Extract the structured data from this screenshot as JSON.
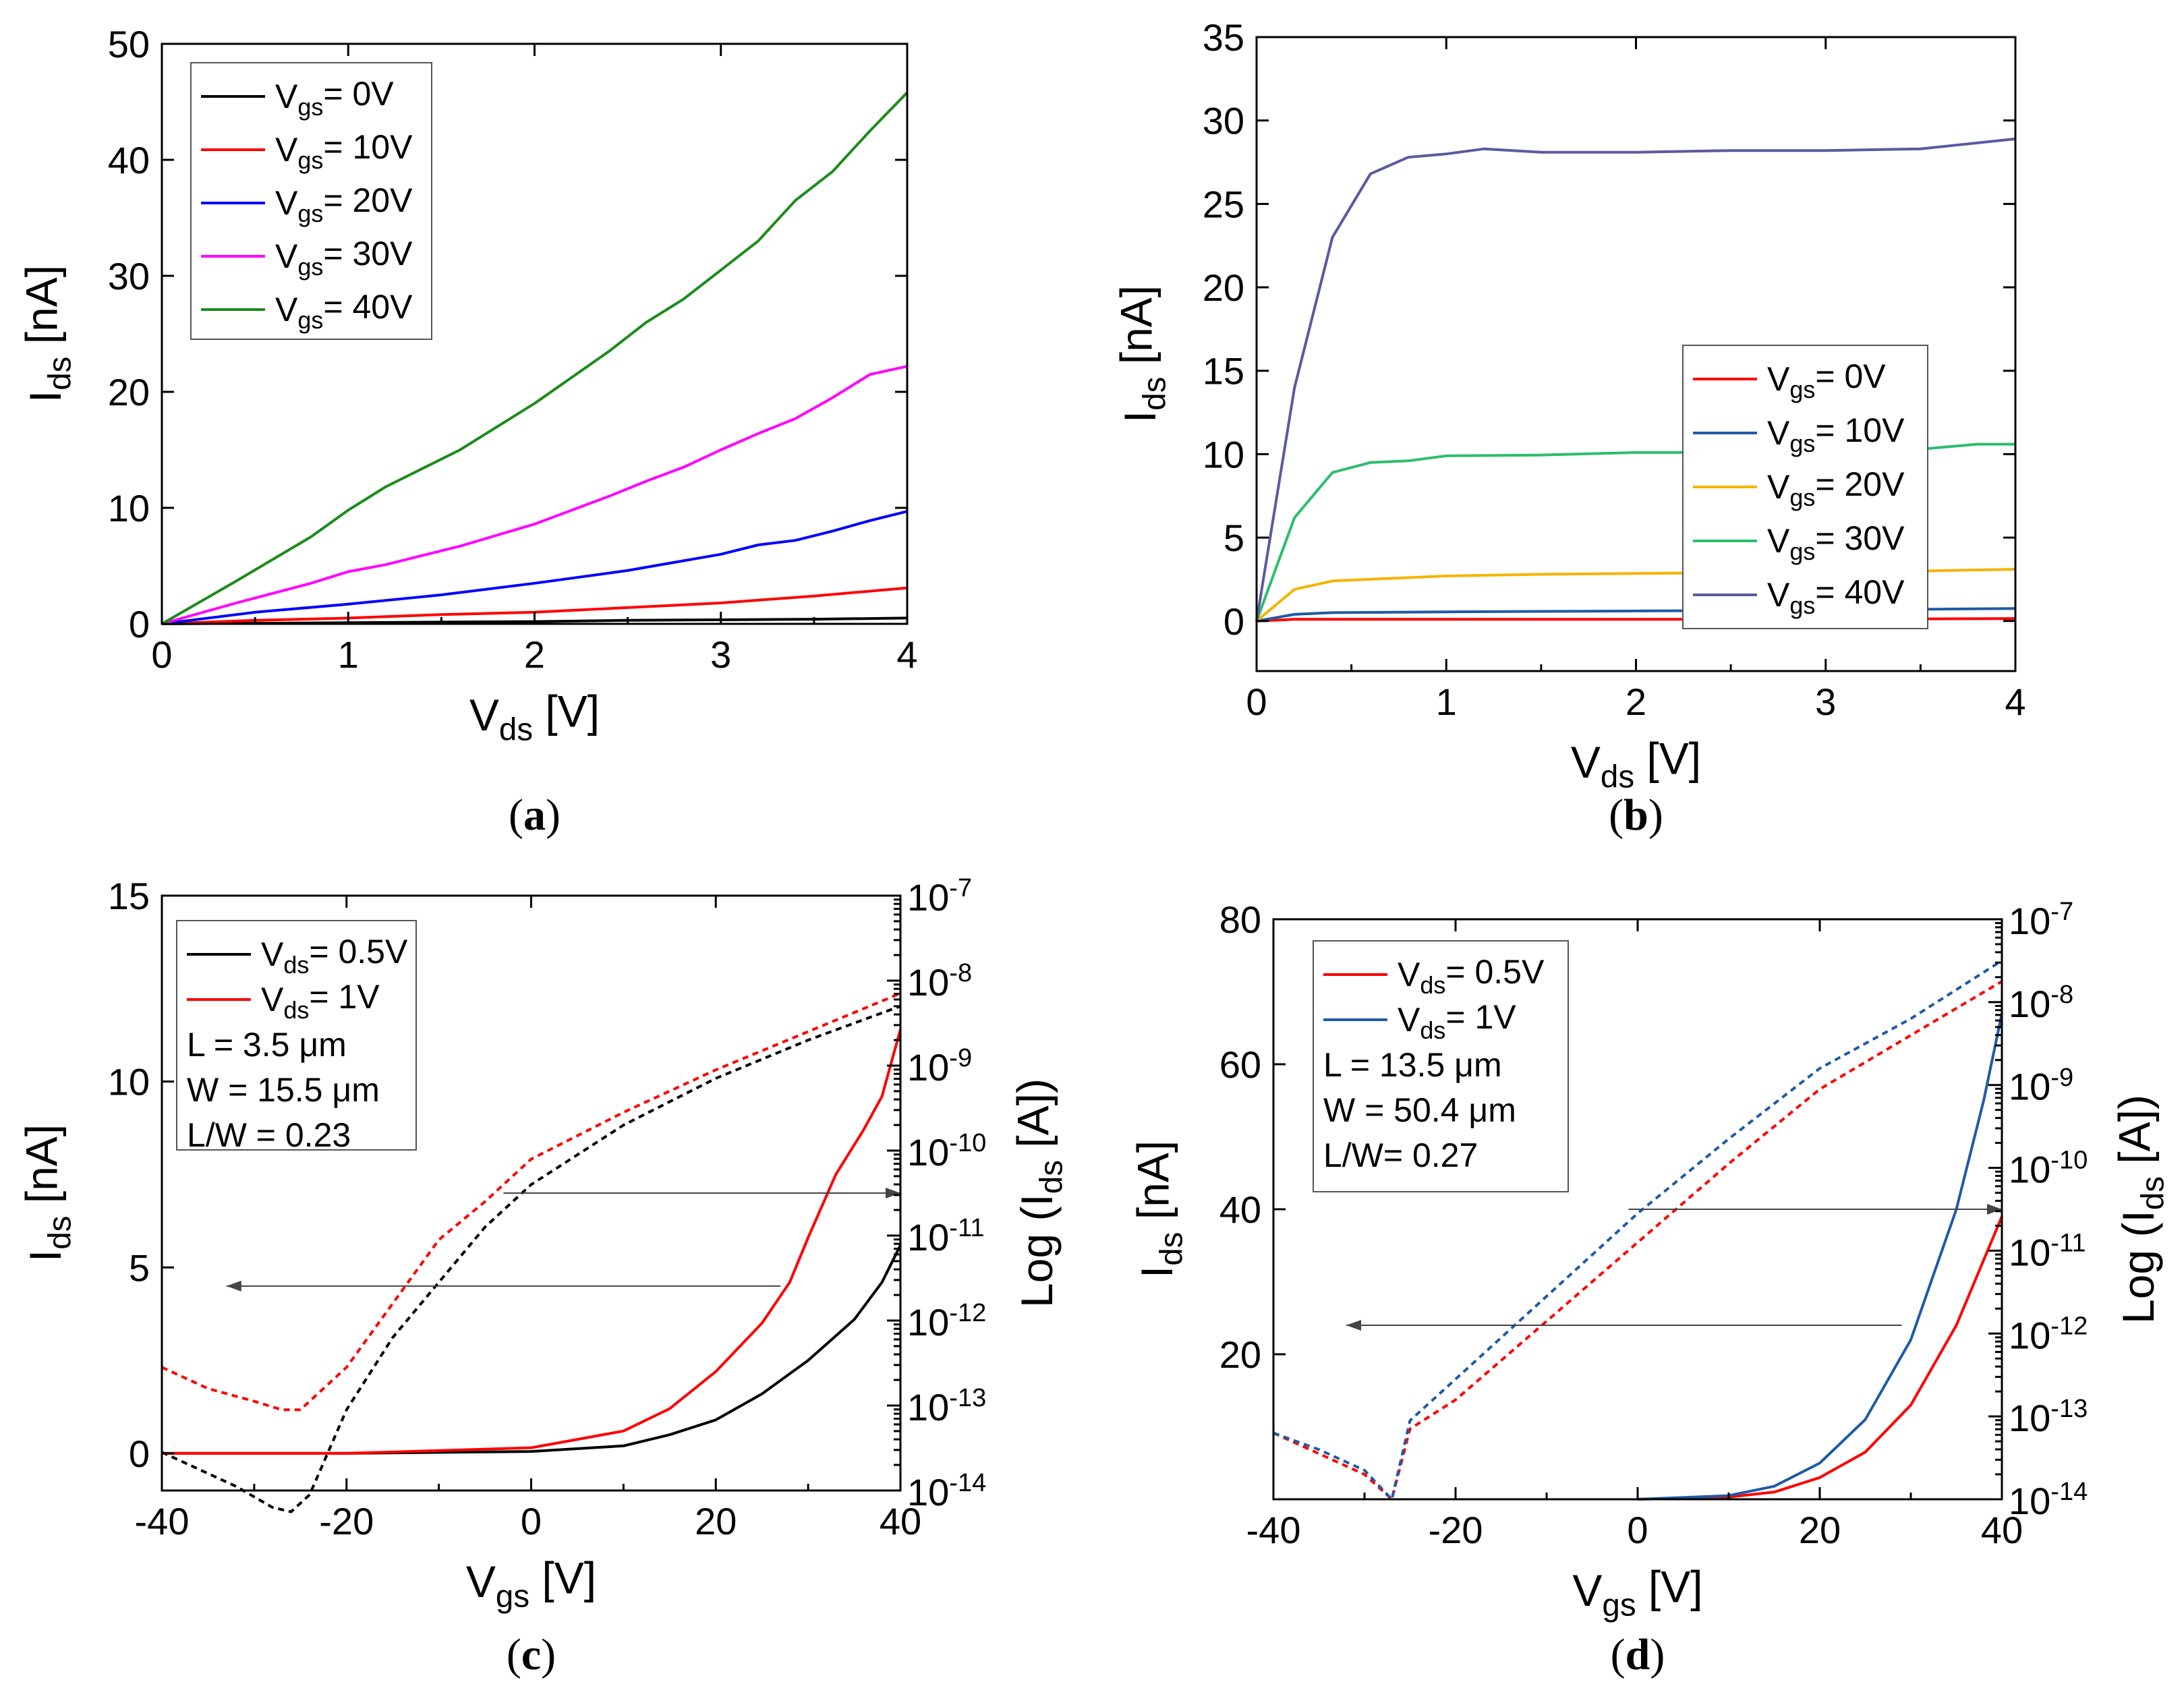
{
  "panel_labels": [
    "(a)",
    "(b)",
    "(c)",
    "(d)"
  ],
  "chart_data": [
    {
      "panel": "(a)",
      "type": "line",
      "xlabel": "V",
      "xlabel_sub": "ds",
      "xlabel_unit": " [V]",
      "ylabel": "I",
      "ylabel_sub": "ds",
      "ylabel_unit": " [nA]",
      "xlim": [
        0,
        4
      ],
      "ylim": [
        0,
        50
      ],
      "xticks": [
        "0",
        "1",
        "2",
        "3",
        "4"
      ],
      "yticks": [
        "0",
        "10",
        "20",
        "30",
        "40",
        "50"
      ],
      "legend_position": "top-left",
      "series": [
        {
          "name": "V",
          "name_sub": "gs",
          "name_rest": "=   0V",
          "color": "#000000",
          "x": [
            0,
            0.5,
            1,
            1.5,
            2,
            2.5,
            3,
            3.5,
            4
          ],
          "y": [
            0,
            0.05,
            0.1,
            0.15,
            0.2,
            0.3,
            0.35,
            0.4,
            0.5
          ]
        },
        {
          "name": "V",
          "name_sub": "gs",
          "name_rest": "=  10V",
          "color": "#ff0000",
          "x": [
            0,
            0.5,
            1,
            1.5,
            2,
            2.5,
            3,
            3.5,
            4
          ],
          "y": [
            0,
            0.3,
            0.5,
            0.8,
            1.0,
            1.4,
            1.8,
            2.4,
            3.1
          ]
        },
        {
          "name": "V",
          "name_sub": "gs",
          "name_rest": "=  20V",
          "color": "#0000ff",
          "x": [
            0,
            0.5,
            1,
            1.5,
            2,
            2.5,
            3,
            3.2,
            3.4,
            3.6,
            3.8,
            4
          ],
          "y": [
            0,
            1.0,
            1.7,
            2.5,
            3.5,
            4.6,
            6.0,
            6.8,
            7.2,
            8.0,
            8.9,
            9.7
          ]
        },
        {
          "name": "V",
          "name_sub": "gs",
          "name_rest": "=  30V",
          "color": "#ff00ff",
          "x": [
            0,
            0.4,
            0.8,
            1,
            1.2,
            1.6,
            2,
            2.4,
            2.6,
            2.8,
            3,
            3.2,
            3.4,
            3.6,
            3.8,
            4
          ],
          "y": [
            0,
            1.8,
            3.5,
            4.5,
            5.1,
            6.7,
            8.6,
            11.0,
            12.3,
            13.5,
            15.0,
            16.4,
            17.7,
            19.5,
            21.5,
            22.2
          ]
        },
        {
          "name": "V",
          "name_sub": "gs",
          "name_rest": "=  40V",
          "color": "#1a8c1a",
          "x": [
            0,
            0.4,
            0.8,
            1,
            1.2,
            1.6,
            2,
            2.4,
            2.6,
            2.8,
            3,
            3.2,
            3.4,
            3.6,
            3.8,
            4
          ],
          "y": [
            0,
            3.7,
            7.5,
            9.8,
            11.8,
            15.0,
            19.0,
            23.5,
            26.0,
            28.0,
            30.5,
            33.0,
            36.5,
            39.0,
            42.5,
            45.8
          ]
        }
      ]
    },
    {
      "panel": "(b)",
      "type": "line",
      "xlabel": "V",
      "xlabel_sub": "ds",
      "xlabel_unit": " [V]",
      "ylabel": "I",
      "ylabel_sub": "ds",
      "ylabel_unit": " [nA]",
      "xlim": [
        0,
        4
      ],
      "ylim": [
        -3,
        35
      ],
      "xticks": [
        "0",
        "1",
        "2",
        "3",
        "4"
      ],
      "yticks": [
        "0",
        "5",
        "10",
        "15",
        "20",
        "25",
        "30",
        "35"
      ],
      "legend_position": "center-right",
      "series": [
        {
          "name": "V",
          "name_sub": "gs",
          "name_rest": "=   0V",
          "color": "#ff0000",
          "x": [
            0,
            0.2,
            0.4,
            1,
            2,
            3,
            4
          ],
          "y": [
            0,
            0.1,
            0.1,
            0.1,
            0.1,
            0.1,
            0.15
          ]
        },
        {
          "name": "V",
          "name_sub": "gs",
          "name_rest": "=  10V",
          "color": "#1f5aa6",
          "x": [
            0,
            0.2,
            0.4,
            1,
            2,
            3,
            4
          ],
          "y": [
            0,
            0.4,
            0.5,
            0.55,
            0.6,
            0.65,
            0.75
          ]
        },
        {
          "name": "V",
          "name_sub": "gs",
          "name_rest": "=  20V",
          "color": "#f5b400",
          "x": [
            0,
            0.2,
            0.4,
            0.6,
            1,
            1.5,
            2,
            2.5,
            3,
            3.5,
            4
          ],
          "y": [
            0,
            1.9,
            2.4,
            2.5,
            2.7,
            2.8,
            2.85,
            2.9,
            2.9,
            3.0,
            3.1
          ]
        },
        {
          "name": "V",
          "name_sub": "gs",
          "name_rest": "=  30V",
          "color": "#2dbd6e",
          "x": [
            0,
            0.2,
            0.4,
            0.6,
            0.8,
            1,
            1.5,
            2,
            2.5,
            3,
            3.5,
            3.8,
            4
          ],
          "y": [
            0,
            6.2,
            8.9,
            9.5,
            9.6,
            9.9,
            9.95,
            10.1,
            10.1,
            10.2,
            10.3,
            10.6,
            10.6
          ]
        },
        {
          "name": "V",
          "name_sub": "gs",
          "name_rest": "=  40V",
          "color": "#5a5aa0",
          "x": [
            0,
            0.2,
            0.4,
            0.6,
            0.8,
            1,
            1.2,
            1.5,
            2,
            2.5,
            3,
            3.5,
            4
          ],
          "y": [
            0,
            14.0,
            23.0,
            26.8,
            27.8,
            28.0,
            28.3,
            28.1,
            28.1,
            28.2,
            28.2,
            28.3,
            28.9
          ]
        }
      ]
    },
    {
      "panel": "(c)",
      "type": "line",
      "xlabel": "V",
      "xlabel_sub": "gs",
      "xlabel_unit": " [V]",
      "ylabel": "I",
      "ylabel_sub": "ds",
      "ylabel_unit": " [nA]",
      "y2label": "Log (I",
      "y2label_sub": "ds",
      "y2label_unit": " [A])",
      "xlim": [
        -40,
        40
      ],
      "ylim": [
        -1,
        15
      ],
      "y2lim_log10": [
        -14,
        -7
      ],
      "y2scale": "log",
      "xticks": [
        "-40",
        "-20",
        "0",
        "20",
        "40"
      ],
      "yticks": [
        "0",
        "5",
        "10",
        "15"
      ],
      "y2ticks": [
        "-14",
        "-13",
        "-12",
        "-11",
        "-10",
        "-9",
        "-8",
        "-7"
      ],
      "legend_position": "top-left",
      "legend_notes": [
        "L = 3.5 μm",
        "W = 15.5 μm",
        "L/W = 0.23"
      ],
      "series": [
        {
          "name": "V",
          "name_sub": "ds",
          "name_rest": "= 0.5V",
          "color": "#000000",
          "axis": "left",
          "x": [
            -40,
            -20,
            0,
            10,
            15,
            20,
            25,
            30,
            35,
            38,
            40
          ],
          "y": [
            0,
            0,
            0.05,
            0.2,
            0.5,
            0.9,
            1.6,
            2.5,
            3.6,
            4.6,
            5.6
          ]
        },
        {
          "name": "",
          "color": "#000000",
          "axis": "right",
          "dashed": true,
          "x": [
            -40,
            -36,
            -32,
            -28,
            -26,
            -24,
            -20,
            -15,
            -10,
            -5,
            0,
            10,
            20,
            30,
            40
          ],
          "y_log10": [
            -13.55,
            -13.75,
            -13.95,
            -14.2,
            -14.25,
            -14.05,
            -13.05,
            -12.2,
            -11.55,
            -10.9,
            -10.4,
            -9.7,
            -9.15,
            -8.7,
            -8.3
          ]
        },
        {
          "name": "V",
          "name_sub": "ds",
          "name_rest": "=   1V",
          "color": "#ff0000",
          "axis": "left",
          "x": [
            -40,
            -20,
            0,
            10,
            15,
            20,
            25,
            28,
            30,
            33,
            36,
            38,
            40
          ],
          "y": [
            0,
            0,
            0.15,
            0.6,
            1.2,
            2.2,
            3.5,
            4.6,
            5.8,
            7.5,
            8.7,
            9.6,
            11.4
          ]
        },
        {
          "name": "",
          "color": "#ff0000",
          "axis": "right",
          "dashed": true,
          "x": [
            -40,
            -35,
            -30,
            -27,
            -25,
            -20,
            -15,
            -10,
            -5,
            0,
            10,
            20,
            30,
            40
          ],
          "y_log10": [
            -12.55,
            -12.8,
            -12.95,
            -13.05,
            -13.05,
            -12.55,
            -11.8,
            -11.05,
            -10.6,
            -10.1,
            -9.55,
            -9.05,
            -8.6,
            -8.15
          ]
        }
      ],
      "annotations": [
        {
          "type": "arrow",
          "direction": "right",
          "from": [
            -3,
            -10.5
          ],
          "to": [
            40,
            -10.5
          ],
          "axis": "right"
        },
        {
          "type": "arrow",
          "direction": "left",
          "from": [
            27,
            4.5
          ],
          "to": [
            -33,
            4.5
          ],
          "axis": "left"
        }
      ]
    },
    {
      "panel": "(d)",
      "type": "line",
      "xlabel": "V",
      "xlabel_sub": "gs",
      "xlabel_unit": " [V]",
      "ylabel": "I",
      "ylabel_sub": "ds",
      "ylabel_unit": " [nA]",
      "y2label": "Log (I",
      "y2label_sub": "ds",
      "y2label_unit": " [A])",
      "xlim": [
        -40,
        40
      ],
      "ylim": [
        0,
        80
      ],
      "y2lim_log10": [
        -14,
        -7
      ],
      "y2scale": "log",
      "xticks": [
        "-40",
        "-20",
        "0",
        "20",
        "40"
      ],
      "yticks": [
        "20",
        "40",
        "60",
        "80"
      ],
      "y2ticks": [
        "-14",
        "-13",
        "-12",
        "-11",
        "-10",
        "-9",
        "-8",
        "-7"
      ],
      "legend_position": "top-left",
      "legend_notes": [
        "L = 13.5 μm",
        "W = 50.4 μm",
        "L/W= 0.27"
      ],
      "series": [
        {
          "name": "V",
          "name_sub": "ds",
          "name_rest": "= 0.5V",
          "color": "#ff0000",
          "axis": "left",
          "x": [
            0,
            10,
            15,
            20,
            25,
            30,
            35,
            40
          ],
          "y": [
            0,
            0.3,
            1,
            3,
            6.5,
            13,
            24,
            39
          ]
        },
        {
          "name": "",
          "color": "#ff0000",
          "axis": "right",
          "dashed": true,
          "x": [
            -40,
            -35,
            -30,
            -27,
            -25,
            -20,
            -10,
            0,
            10,
            20,
            30,
            40
          ],
          "y_log10": [
            -13.2,
            -13.45,
            -13.7,
            -14.0,
            -13.15,
            -12.8,
            -11.85,
            -10.9,
            -9.95,
            -9.05,
            -8.4,
            -7.75
          ]
        },
        {
          "name": "V",
          "name_sub": "ds",
          "name_rest": "=   1V",
          "color": "#1f5aa6",
          "axis": "left",
          "x": [
            0,
            10,
            15,
            20,
            25,
            30,
            35,
            38,
            40
          ],
          "y": [
            0,
            0.5,
            1.8,
            5,
            11,
            22,
            40,
            55,
            67
          ]
        },
        {
          "name": "",
          "color": "#1f5aa6",
          "axis": "right",
          "dashed": true,
          "x": [
            -40,
            -35,
            -30,
            -27,
            -25,
            -20,
            -10,
            0,
            10,
            20,
            30,
            40
          ],
          "y_log10": [
            -13.2,
            -13.4,
            -13.65,
            -14.0,
            -13.05,
            -12.55,
            -11.55,
            -10.55,
            -9.65,
            -8.8,
            -8.2,
            -7.5
          ]
        }
      ],
      "annotations": [
        {
          "type": "arrow",
          "direction": "right",
          "from": [
            -1,
            -10.5
          ],
          "to": [
            40,
            -10.5
          ],
          "axis": "right"
        },
        {
          "type": "arrow",
          "direction": "left",
          "from": [
            29,
            24
          ],
          "to": [
            -32,
            24
          ],
          "axis": "left"
        }
      ]
    }
  ]
}
